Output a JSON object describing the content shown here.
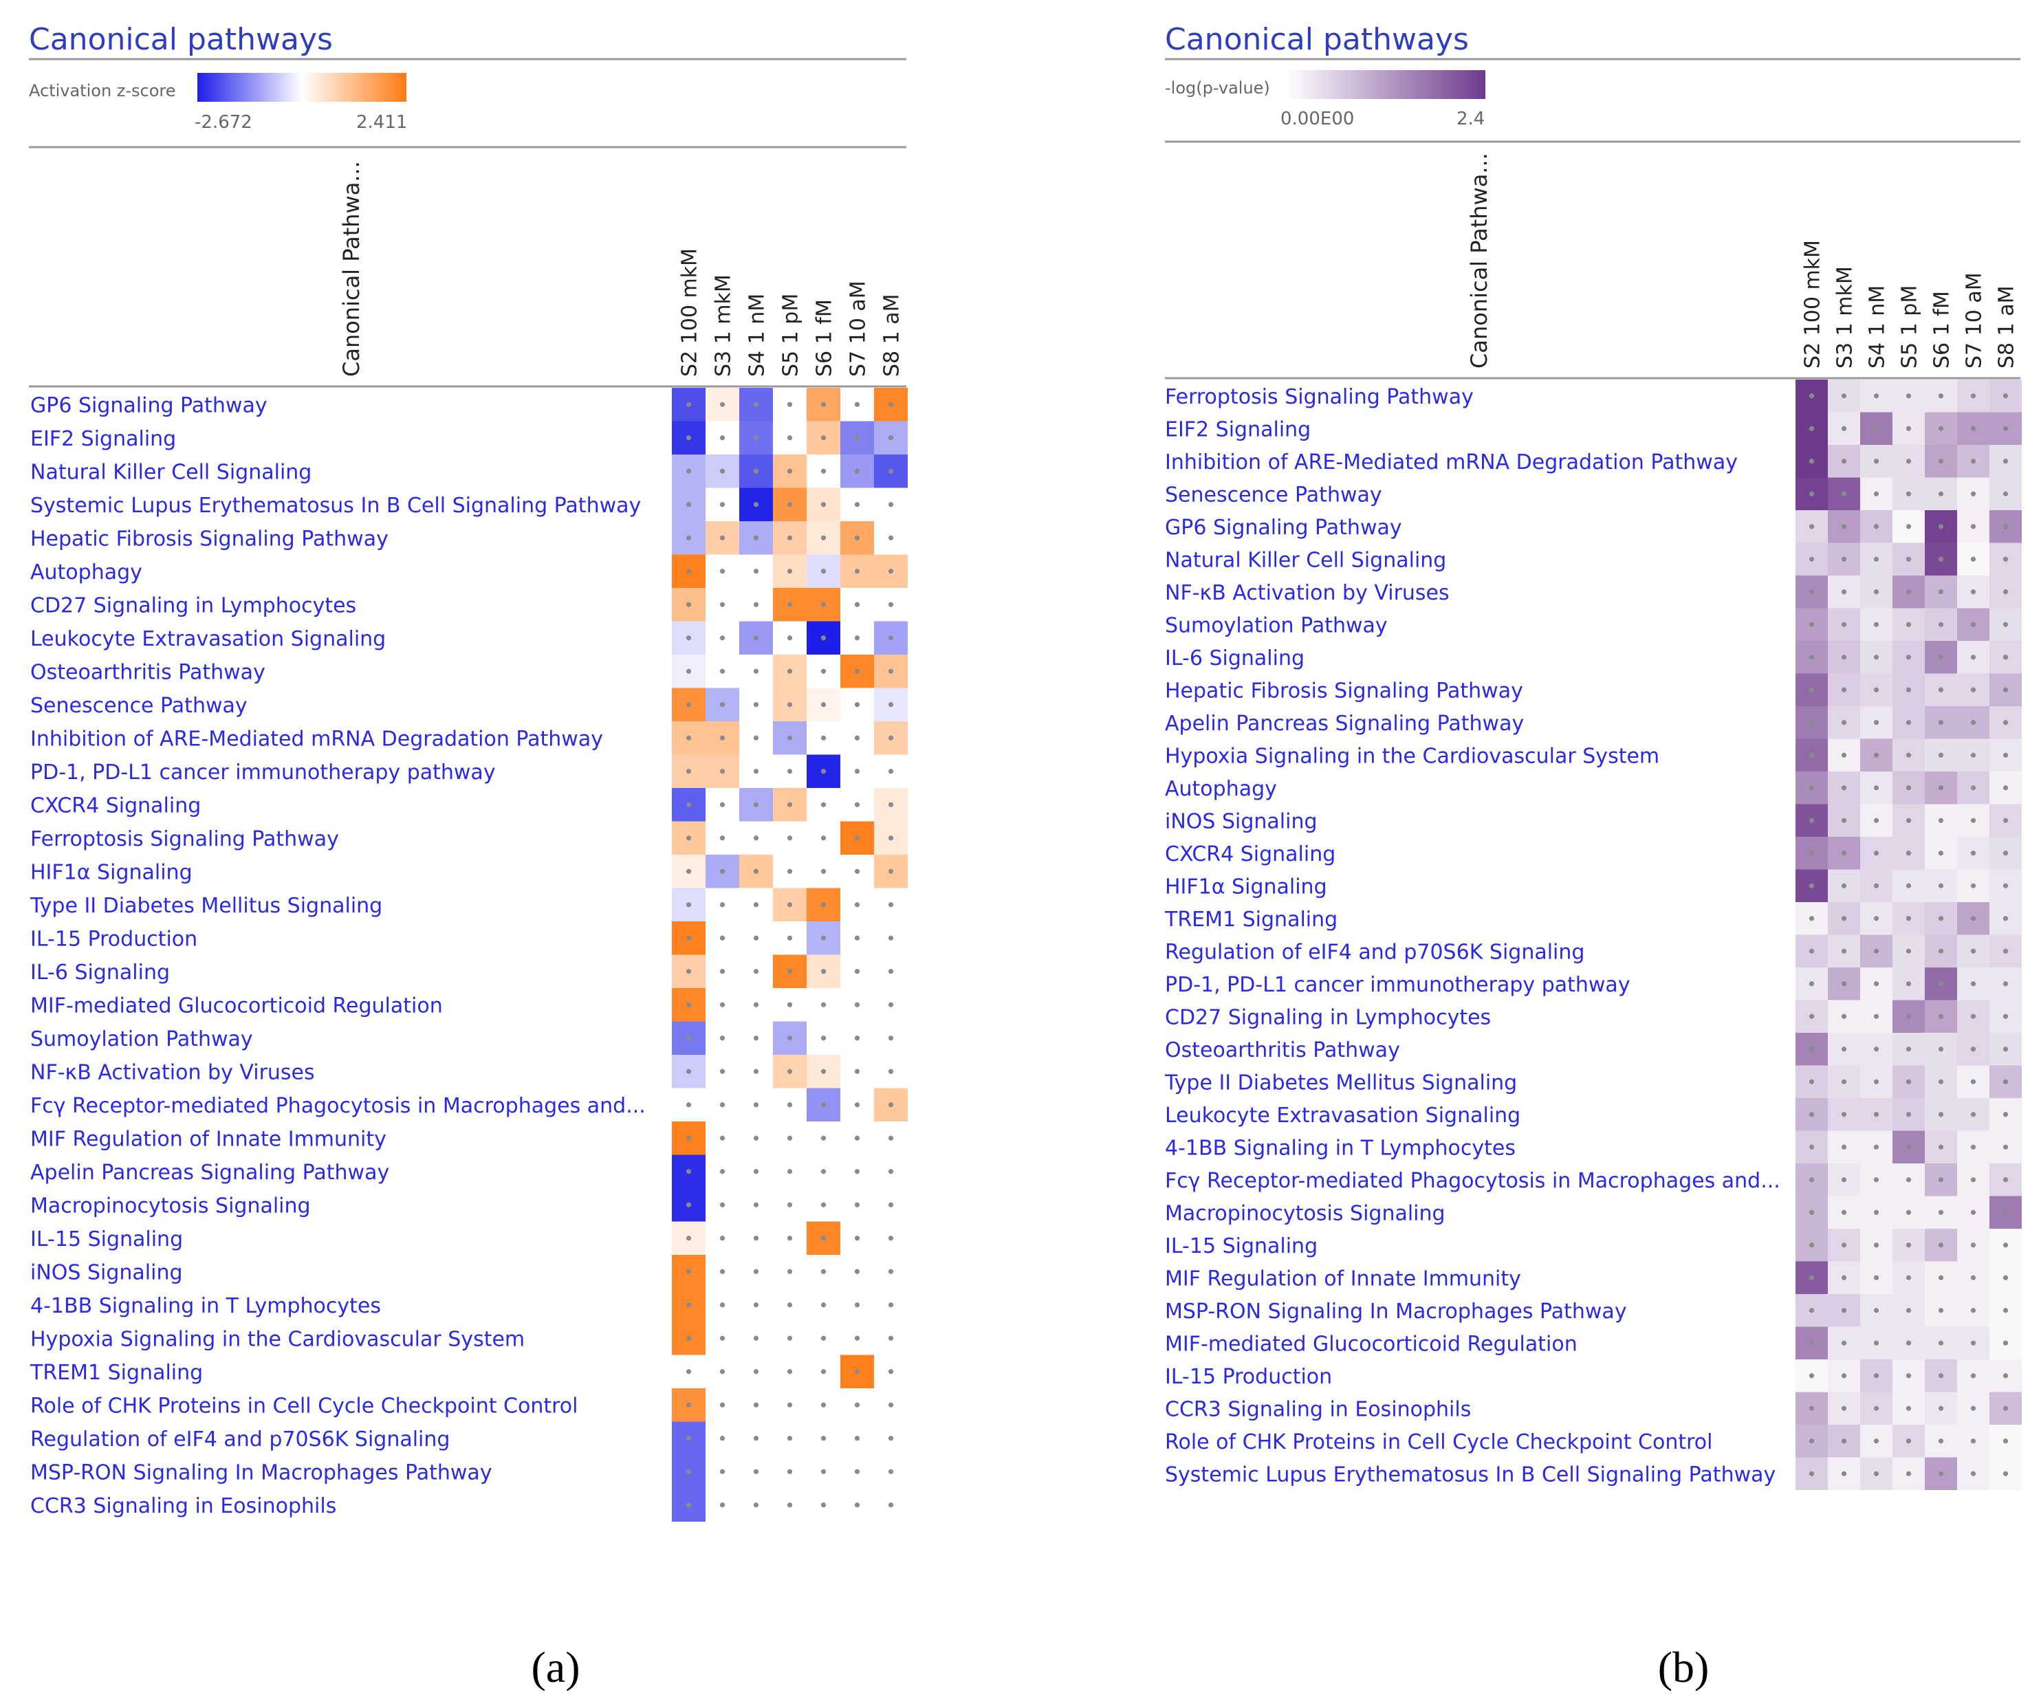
{
  "colors": {
    "title": "#2F3DBF",
    "row_label": "#2A2AE0",
    "rule": "#9A9A9A",
    "dot": "#8A8A8A",
    "zscore_neg": "#1E1EE8",
    "zscore_pos": "#FF7A12",
    "pval_high": "#6E3A8C"
  },
  "chart_data": [
    {
      "type": "heatmap",
      "panel_caption": "(a)",
      "title": "Canonical pathways",
      "legend_label": "Activation z-score",
      "legend_min": -2.672,
      "legend_max": 2.411,
      "legend_min_text": "-2.672",
      "legend_max_text": "2.411",
      "row_header": "Canonical Pathwa...",
      "columns": [
        "S2 100 mkM",
        "S3 1 mkM",
        "S4 1 nM",
        "S5 1 pM",
        "S6 1 fM",
        "S7 10 aM",
        "S8 1 aM"
      ],
      "rows": [
        "GP6 Signaling Pathway",
        "EIF2 Signaling",
        "Natural Killer Cell Signaling",
        "Systemic Lupus Erythematosus In B Cell Signaling Pathway",
        "Hepatic Fibrosis Signaling Pathway",
        "Autophagy",
        "CD27 Signaling in Lymphocytes",
        "Leukocyte Extravasation Signaling",
        "Osteoarthritis Pathway",
        "Senescence Pathway",
        "Inhibition of ARE-Mediated mRNA Degradation Pathway",
        "PD-1, PD-L1 cancer immunotherapy pathway",
        "CXCR4 Signaling",
        "Ferroptosis Signaling Pathway",
        "HIF1α Signaling",
        "Type II Diabetes Mellitus Signaling",
        "IL-15 Production",
        "IL-6 Signaling",
        "MIF-mediated Glucocorticoid Regulation",
        "Sumoylation Pathway",
        "NF-κB Activation by Viruses",
        "Fcγ Receptor-mediated Phagocytosis in Macrophages and...",
        "MIF Regulation of Innate Immunity",
        "Apelin Pancreas Signaling Pathway",
        "Macropinocytosis Signaling",
        "IL-15 Signaling",
        "iNOS Signaling",
        "4-1BB Signaling in T Lymphocytes",
        "Hypoxia Signaling in the Cardiovascular System",
        "TREM1 Signaling",
        "Role of CHK Proteins in Cell Cycle Checkpoint Control",
        "Regulation of eIF4 and p70S6K Signaling",
        "MSP-RON Signaling In Macrophages Pathway",
        "CCR3 Signaling in Eosinophils"
      ],
      "values": [
        [
          -2.1,
          0.3,
          -1.8,
          0,
          1.6,
          0,
          2.2
        ],
        [
          -2.4,
          0,
          -1.7,
          0,
          1.0,
          -1.5,
          -1.0
        ],
        [
          -0.9,
          -0.6,
          -2.0,
          1.1,
          0,
          -1.2,
          -2.0
        ],
        [
          -0.9,
          0,
          -2.6,
          1.9,
          0.5,
          0,
          0
        ],
        [
          -0.9,
          0.9,
          -1.0,
          0.9,
          0.4,
          1.6,
          0
        ],
        [
          2.3,
          0,
          0,
          0.6,
          -0.4,
          1.0,
          1.0
        ],
        [
          1.2,
          0,
          0,
          2.1,
          2.1,
          0,
          0
        ],
        [
          -0.4,
          0,
          -1.2,
          0,
          -2.67,
          0,
          -1.1
        ],
        [
          -0.2,
          0,
          0,
          0.8,
          0,
          2.2,
          1.1
        ],
        [
          2.0,
          -0.9,
          0,
          0.8,
          0.2,
          0,
          -0.3
        ],
        [
          1.1,
          1.1,
          0,
          -1.0,
          0,
          0,
          0.9
        ],
        [
          0.9,
          0.9,
          0,
          0,
          -2.6,
          0,
          0
        ],
        [
          -1.9,
          0,
          -1.0,
          1.0,
          0,
          0,
          0.4
        ],
        [
          1.0,
          0,
          0,
          0,
          0,
          2.3,
          0.4
        ],
        [
          0.3,
          -1.0,
          1.0,
          0,
          0,
          0,
          1.0
        ],
        [
          -0.4,
          0,
          0,
          0.9,
          2.1,
          0,
          0
        ],
        [
          2.3,
          0,
          0,
          0,
          -0.9,
          0,
          0
        ],
        [
          0.9,
          0,
          0,
          2.2,
          0.5,
          0,
          0
        ],
        [
          2.2,
          0,
          0,
          0,
          0,
          0,
          0
        ],
        [
          -1.6,
          0,
          0,
          -1.0,
          0,
          0,
          0
        ],
        [
          -0.6,
          0,
          0,
          0.8,
          0.4,
          0,
          0
        ],
        [
          0,
          0,
          0,
          0,
          -1.3,
          0,
          1.0
        ],
        [
          2.3,
          0,
          0,
          0,
          0,
          0,
          0
        ],
        [
          -2.5,
          0,
          0,
          0,
          0,
          0,
          0
        ],
        [
          -2.5,
          0,
          0,
          0,
          0,
          0,
          0
        ],
        [
          0.3,
          0,
          0,
          0,
          2.2,
          0,
          0
        ],
        [
          2.2,
          0,
          0,
          0,
          0,
          0,
          0
        ],
        [
          2.2,
          0,
          0,
          0,
          0,
          0,
          0
        ],
        [
          2.2,
          0,
          0,
          0,
          0,
          0,
          0
        ],
        [
          0,
          0,
          0,
          0,
          0,
          2.3,
          0
        ],
        [
          2.0,
          0,
          0,
          0,
          0,
          0,
          0
        ],
        [
          -1.8,
          0,
          0,
          0,
          0,
          0,
          0
        ],
        [
          -1.8,
          0,
          0,
          0,
          0,
          0,
          0
        ],
        [
          -1.8,
          0,
          0,
          0,
          0,
          0,
          0
        ]
      ]
    },
    {
      "type": "heatmap",
      "panel_caption": "(b)",
      "title": "Canonical pathways",
      "legend_label": "-log(p-value)",
      "legend_min": 0,
      "legend_max": 2.4,
      "legend_min_text": "0.00E00",
      "legend_max_text": "2.4",
      "row_header": "Canonical Pathwa...",
      "columns": [
        "S2 100 mkM",
        "S3 1 mkM",
        "S4 1 nM",
        "S5 1 pM",
        "S6 1 fM",
        "S7 10 aM",
        "S8 1 aM"
      ],
      "rows": [
        "Ferroptosis Signaling Pathway",
        "EIF2 Signaling",
        "Inhibition of ARE-Mediated mRNA Degradation Pathway",
        "Senescence Pathway",
        "GP6 Signaling Pathway",
        "Natural Killer Cell Signaling",
        "NF-κB Activation by Viruses",
        "Sumoylation Pathway",
        "IL-6 Signaling",
        "Hepatic Fibrosis Signaling Pathway",
        "Apelin Pancreas Signaling Pathway",
        "Hypoxia Signaling in the Cardiovascular System",
        "Autophagy",
        "iNOS Signaling",
        "CXCR4 Signaling",
        "HIF1α Signaling",
        "TREM1 Signaling",
        "Regulation of eIF4 and p70S6K Signaling",
        "PD-1, PD-L1 cancer immunotherapy pathway",
        "CD27 Signaling in Lymphocytes",
        "Osteoarthritis Pathway",
        "Type II Diabetes Mellitus Signaling",
        "Leukocyte Extravasation Signaling",
        "4-1BB Signaling in T Lymphocytes",
        "Fcγ Receptor-mediated Phagocytosis in Macrophages and...",
        "Macropinocytosis Signaling",
        "IL-15 Signaling",
        "MIF Regulation of Innate Immunity",
        "MSP-RON Signaling In Macrophages Pathway",
        "MIF-mediated Glucocorticoid Regulation",
        "IL-15 Production",
        "CCR3 Signaling in Eosinophils",
        "Role of CHK Proteins in Cell Cycle Checkpoint Control",
        "Systemic Lupus Erythematosus In B Cell Signaling Pathway"
      ],
      "values": [
        [
          2.4,
          0.4,
          0.3,
          0.3,
          0.3,
          0.5,
          0.6
        ],
        [
          2.4,
          0.3,
          1.6,
          0.3,
          1.0,
          1.2,
          1.2
        ],
        [
          2.4,
          0.7,
          0.4,
          0.4,
          1.1,
          0.8,
          0.4
        ],
        [
          2.3,
          2.0,
          0.2,
          0.4,
          0.4,
          0.2,
          0.4
        ],
        [
          0.5,
          1.2,
          0.7,
          0.1,
          2.3,
          0.2,
          1.4
        ],
        [
          0.6,
          0.8,
          0.4,
          0.6,
          2.2,
          0.1,
          0.5
        ],
        [
          1.4,
          0.3,
          0.4,
          1.3,
          0.9,
          0.3,
          0.5
        ],
        [
          1.2,
          0.6,
          0.3,
          0.5,
          0.6,
          1.1,
          0.4
        ],
        [
          1.3,
          0.7,
          0.4,
          0.6,
          1.4,
          0.3,
          0.5
        ],
        [
          1.8,
          0.6,
          0.5,
          0.6,
          0.5,
          0.5,
          0.9
        ],
        [
          1.6,
          0.5,
          0.3,
          0.6,
          0.9,
          0.9,
          0.5
        ],
        [
          1.8,
          0.2,
          1.0,
          0.5,
          0.4,
          0.4,
          0.3
        ],
        [
          1.4,
          0.6,
          0.3,
          0.7,
          1.0,
          0.6,
          0.2
        ],
        [
          2.1,
          0.6,
          0.2,
          0.5,
          0.2,
          0.2,
          0.5
        ],
        [
          1.5,
          1.2,
          0.5,
          0.5,
          0.2,
          0.3,
          0.4
        ],
        [
          2.2,
          0.4,
          0.5,
          0.3,
          0.3,
          0.2,
          0.3
        ],
        [
          0.2,
          0.6,
          0.3,
          0.5,
          0.6,
          1.1,
          0.3
        ],
        [
          0.6,
          0.4,
          0.9,
          0.4,
          0.7,
          0.4,
          0.5
        ],
        [
          0.3,
          1.0,
          0.2,
          0.4,
          1.8,
          0.3,
          0.3
        ],
        [
          0.5,
          0.2,
          0.2,
          1.4,
          1.1,
          0.5,
          0.3
        ],
        [
          1.5,
          0.3,
          0.3,
          0.4,
          0.4,
          0.5,
          0.4
        ],
        [
          0.6,
          0.4,
          0.3,
          0.7,
          0.4,
          0.2,
          0.8
        ],
        [
          0.9,
          0.5,
          0.5,
          0.6,
          0.4,
          0.4,
          0.2
        ],
        [
          0.6,
          0.2,
          0.2,
          1.5,
          0.5,
          0.2,
          0.2
        ],
        [
          0.9,
          0.3,
          0.2,
          0.2,
          0.9,
          0.2,
          0.5
        ],
        [
          0.9,
          0.2,
          0.2,
          0.2,
          0.2,
          0.2,
          1.6
        ],
        [
          0.9,
          0.5,
          0.2,
          0.4,
          0.8,
          0.2,
          0.1
        ],
        [
          2.0,
          0.3,
          0.2,
          0.3,
          0.2,
          0.2,
          0.1
        ],
        [
          0.6,
          0.6,
          0.3,
          0.3,
          0.2,
          0.2,
          0.1
        ],
        [
          1.5,
          0.3,
          0.3,
          0.3,
          0.3,
          0.3,
          0.1
        ],
        [
          0.1,
          0.2,
          0.6,
          0.2,
          0.6,
          0.2,
          0.2
        ],
        [
          1.0,
          0.3,
          0.5,
          0.2,
          0.3,
          0.2,
          0.8
        ],
        [
          0.9,
          0.7,
          0.2,
          0.5,
          0.2,
          0.2,
          0.1
        ],
        [
          0.6,
          0.2,
          0.4,
          0.2,
          1.2,
          0.2,
          0.1
        ]
      ]
    }
  ]
}
